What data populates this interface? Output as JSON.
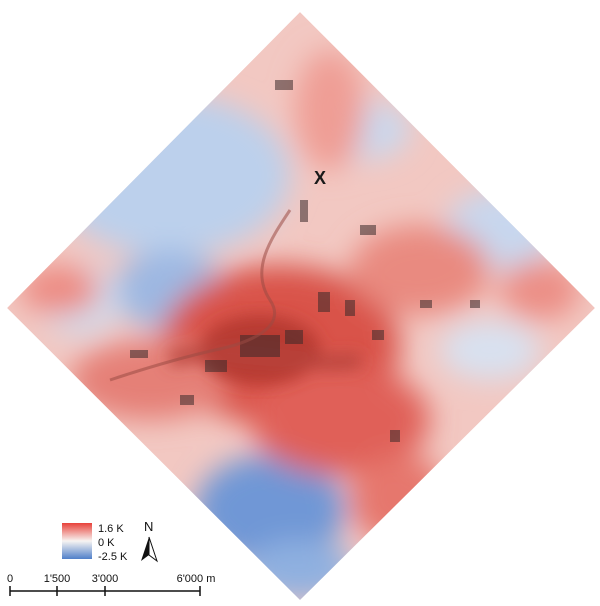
{
  "map": {
    "marker_label": "X"
  },
  "legend": {
    "max_label": "1.6 K",
    "mid_label": "0 K",
    "min_label": "-2.5 K",
    "colors": {
      "warm": "#e8413a",
      "neutral": "#f7f4f2",
      "cool": "#4f7fc9"
    }
  },
  "north_arrow": {
    "label": "N"
  },
  "scale_bar": {
    "ticks": [
      "0",
      "1'500",
      "3'000",
      "6'000 m"
    ]
  },
  "colors": {
    "warm_strong": "#c73a33",
    "warm": "#e86c60",
    "warm_light": "#f3aaa2",
    "neutral": "#f5f2f1",
    "cool_light": "#bcd0ec",
    "cool": "#7ea3da",
    "cool_strong": "#4c79c4",
    "buildings": "#3a2a2a"
  }
}
